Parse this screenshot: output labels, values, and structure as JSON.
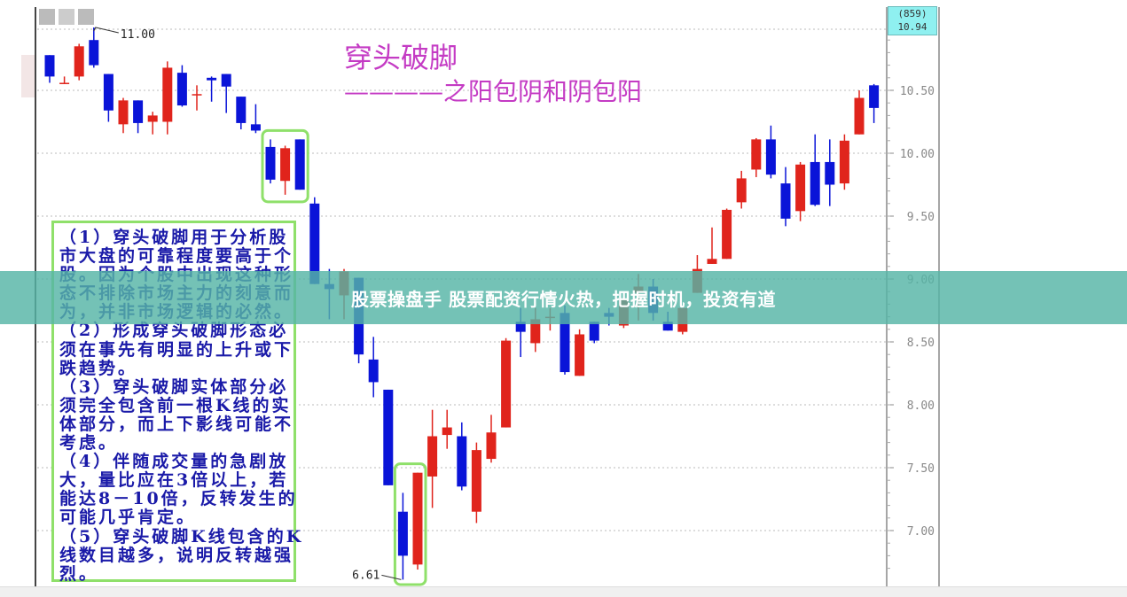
{
  "banner": {
    "text": "股票操盘手 股票配资行情火热，把握时机，投资有道",
    "color": "#56b4a6"
  },
  "title": "穿头破脚",
  "subtitle": "————之阳包阴和阴包阳",
  "price_box": {
    "line1": "(859)",
    "line2": "10.94"
  },
  "notes": [
    "（1）穿头破脚用于分析股",
    "市大盘的可靠程度要高于个",
    "股。因为个股中出现这种形",
    "态不排除市场主力的刻意而",
    "为，并非市场逻辑的必然。",
    "（2）形成穿头破脚形态必",
    "须在事先有明显的上升或下",
    "跌趋势。",
    "（3）穿头破脚实体部分必",
    "须完全包含前一根K线的实",
    "体部分，而上下影线可能不",
    "考虑。",
    "（4）伴随成交量的急剧放",
    "大，量比应在3倍以上，若",
    "能达8－10倍，反转发生的",
    "可能几乎肯定。",
    "（5）穿头破脚K线包含的K",
    "线数目越多，说明反转越强",
    "烈。"
  ],
  "chart_data": {
    "type": "candlestick",
    "title": "穿头破脚",
    "subtitle": "————之阳包阴和阴包阳",
    "y_axis": {
      "position": "right",
      "range": [
        6.6,
        11.05
      ],
      "ticks": [
        "10.50",
        "10.00",
        "9.50",
        "9.00",
        "8.50",
        "8.00",
        "7.50",
        "7.00"
      ]
    },
    "grid": true,
    "colors": {
      "up": "#e0241c",
      "down": "#0a14d8",
      "highlight": "#8fe06a",
      "axis": "#888888"
    },
    "annotations": [
      {
        "label": "11.00",
        "candle": 4,
        "value": 11.0
      },
      {
        "label": "6.61",
        "candle": 25,
        "value": 6.61
      }
    ],
    "highlight_groups": [
      [
        16,
        18
      ],
      [
        25,
        26
      ]
    ],
    "candles": [
      [
        10.78,
        10.78,
        10.56,
        10.61
      ],
      [
        10.56,
        10.61,
        10.55,
        10.56
      ],
      [
        10.61,
        10.87,
        10.58,
        10.85
      ],
      [
        10.9,
        11.0,
        10.68,
        10.7
      ],
      [
        10.63,
        10.63,
        10.25,
        10.34
      ],
      [
        10.23,
        10.44,
        10.16,
        10.42
      ],
      [
        10.42,
        10.42,
        10.16,
        10.24
      ],
      [
        10.25,
        10.33,
        10.15,
        10.3
      ],
      [
        10.25,
        10.73,
        10.15,
        10.68
      ],
      [
        10.64,
        10.7,
        10.37,
        10.38
      ],
      [
        10.47,
        10.54,
        10.34,
        10.47
      ],
      [
        10.6,
        10.61,
        10.41,
        10.58
      ],
      [
        10.63,
        10.63,
        10.32,
        10.53
      ],
      [
        10.45,
        10.45,
        10.19,
        10.24
      ],
      [
        10.23,
        10.39,
        10.16,
        10.18
      ],
      [
        10.05,
        10.11,
        9.76,
        9.79
      ],
      [
        9.78,
        10.06,
        9.67,
        10.04
      ],
      [
        10.11,
        10.11,
        9.71,
        9.71
      ],
      [
        9.6,
        9.65,
        8.96,
        8.96
      ],
      [
        8.96,
        9.08,
        8.68,
        8.92
      ],
      [
        8.87,
        9.08,
        8.68,
        9.06
      ],
      [
        9.01,
        9.01,
        8.33,
        8.4
      ],
      [
        8.36,
        8.54,
        8.06,
        8.18
      ],
      [
        8.12,
        8.12,
        7.36,
        7.36
      ],
      [
        7.15,
        7.3,
        6.61,
        6.8
      ],
      [
        6.73,
        7.46,
        6.69,
        7.46
      ],
      [
        7.43,
        7.96,
        7.18,
        7.75
      ],
      [
        7.76,
        7.96,
        7.65,
        7.82
      ],
      [
        7.75,
        7.86,
        7.32,
        7.35
      ],
      [
        7.15,
        7.7,
        7.06,
        7.64
      ],
      [
        7.57,
        7.92,
        7.54,
        7.78
      ],
      [
        7.82,
        8.53,
        7.82,
        8.51
      ],
      [
        8.66,
        8.77,
        8.38,
        8.58
      ],
      [
        8.49,
        8.77,
        8.42,
        8.68
      ],
      [
        8.7,
        8.77,
        8.59,
        8.7
      ],
      [
        8.73,
        8.79,
        8.24,
        8.26
      ],
      [
        8.23,
        8.6,
        8.23,
        8.56
      ],
      [
        8.66,
        8.66,
        8.49,
        8.51
      ],
      [
        8.73,
        8.77,
        8.63,
        8.7
      ],
      [
        8.63,
        8.86,
        8.61,
        8.84
      ],
      [
        8.89,
        9.04,
        8.67,
        8.94
      ],
      [
        8.94,
        9.0,
        8.67,
        8.73
      ],
      [
        8.66,
        8.74,
        8.59,
        8.59
      ],
      [
        8.58,
        8.77,
        8.56,
        8.77
      ],
      [
        8.89,
        9.19,
        8.89,
        9.08
      ],
      [
        9.12,
        9.41,
        9.12,
        9.16
      ],
      [
        9.16,
        9.56,
        9.16,
        9.55
      ],
      [
        9.61,
        9.86,
        9.56,
        9.8
      ],
      [
        9.87,
        10.12,
        9.81,
        10.11
      ],
      [
        10.11,
        10.22,
        9.8,
        9.83
      ],
      [
        9.76,
        9.89,
        9.42,
        9.48
      ],
      [
        9.54,
        9.93,
        9.46,
        9.91
      ],
      [
        9.93,
        10.15,
        9.58,
        9.59
      ],
      [
        9.93,
        10.11,
        9.58,
        9.75
      ],
      [
        9.76,
        10.15,
        9.71,
        10.1
      ],
      [
        10.15,
        10.5,
        10.15,
        10.44
      ],
      [
        10.54,
        10.55,
        10.24,
        10.36
      ]
    ],
    "candle_format": [
      "open",
      "high",
      "low",
      "close"
    ]
  }
}
